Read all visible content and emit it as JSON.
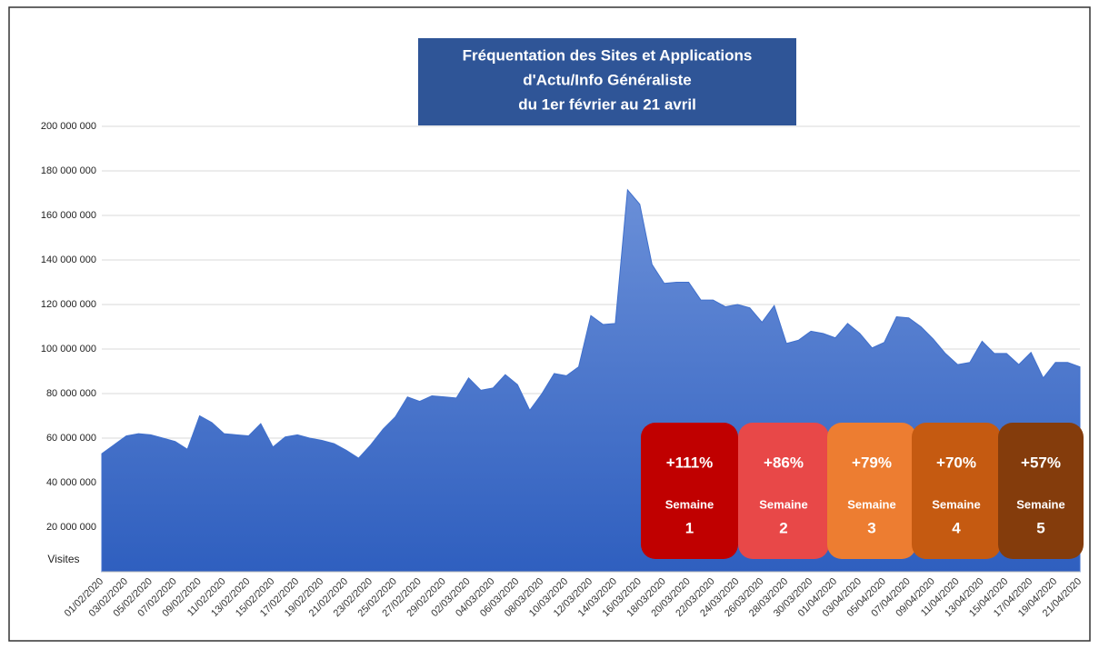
{
  "chart_data": {
    "type": "area",
    "title": [
      "Fréquentation des Sites et Applications",
      "d'Actu/Info Généraliste",
      "du 1er février au 21 avril"
    ],
    "y_label": "Visites",
    "color": "#3f6fcc",
    "categories": [
      "01/02/2020",
      null,
      "03/02/2020",
      null,
      "05/02/2020",
      null,
      "07/02/2020",
      null,
      "09/02/2020",
      null,
      "11/02/2020",
      null,
      "13/02/2020",
      null,
      "15/02/2020",
      null,
      "17/02/2020",
      null,
      "19/02/2020",
      null,
      "21/02/2020",
      null,
      "23/02/2020",
      null,
      "25/02/2020",
      null,
      "27/02/2020",
      null,
      "29/02/2020",
      null,
      "02/03/2020",
      null,
      "04/03/2020",
      null,
      "06/03/2020",
      null,
      "08/03/2020",
      null,
      "10/03/2020",
      null,
      "12/03/2020",
      null,
      "14/03/2020",
      null,
      "16/03/2020",
      null,
      "18/03/2020",
      null,
      "20/03/2020",
      null,
      "22/03/2020",
      null,
      "24/03/2020",
      null,
      "26/03/2020",
      null,
      "28/03/2020",
      null,
      "30/03/2020",
      null,
      "01/04/2020",
      null,
      "03/04/2020",
      null,
      "05/04/2020",
      null,
      "07/04/2020",
      null,
      "09/04/2020",
      null,
      "11/04/2020",
      null,
      "13/04/2020",
      null,
      "15/04/2020",
      null,
      "17/04/2020",
      null,
      "19/04/2020",
      null,
      "21/04/2020"
    ],
    "values": [
      53000000,
      57000000,
      61000000,
      62000000,
      61500000,
      60000000,
      58500000,
      55000000,
      70000000,
      67000000,
      62000000,
      61500000,
      61000000,
      66500000,
      56000000,
      60500000,
      61500000,
      60000000,
      59000000,
      57500000,
      54500000,
      51000000,
      57000000,
      64000000,
      69500000,
      78500000,
      76500000,
      79000000,
      78500000,
      78000000,
      87000000,
      81500000,
      82500000,
      88500000,
      84000000,
      72500000,
      80000000,
      89000000,
      88000000,
      92000000,
      115000000,
      111000000,
      111500000,
      171500000,
      165000000,
      138000000,
      129500000,
      130000000,
      130000000,
      122000000,
      122000000,
      119000000,
      120000000,
      118500000,
      112000000,
      119500000,
      102500000,
      104000000,
      108000000,
      107000000,
      105000000,
      111500000,
      107000000,
      100500000,
      103000000,
      114500000,
      114000000,
      110000000,
      104500000,
      98000000,
      93000000,
      94000000,
      103500000,
      98000000,
      98000000,
      93000000,
      98500000,
      87000000,
      94000000,
      94000000,
      92000000
    ],
    "ylim": [
      0,
      200000000
    ],
    "yticks": [
      {
        "value": 20000000,
        "label": "20 000 000"
      },
      {
        "value": 40000000,
        "label": "40 000 000"
      },
      {
        "value": 60000000,
        "label": "60 000 000"
      },
      {
        "value": 80000000,
        "label": "80 000 000"
      },
      {
        "value": 100000000,
        "label": "100 000 000"
      },
      {
        "value": 120000000,
        "label": "120 000 000"
      },
      {
        "value": 140000000,
        "label": "140 000 000"
      },
      {
        "value": 160000000,
        "label": "160 000 000"
      },
      {
        "value": 180000000,
        "label": "180 000 000"
      },
      {
        "value": 200000000,
        "label": "200 000 000"
      }
    ],
    "grid": true,
    "annotations": [
      {
        "change": "+111%",
        "label": "Semaine",
        "week": "1",
        "color": "#c00000"
      },
      {
        "change": "+86%",
        "label": "Semaine",
        "week": "2",
        "color": "#e84848"
      },
      {
        "change": "+79%",
        "label": "Semaine",
        "week": "3",
        "color": "#ed7d31"
      },
      {
        "change": "+70%",
        "label": "Semaine",
        "week": "4",
        "color": "#c55a11"
      },
      {
        "change": "+57%",
        "label": "Semaine",
        "week": "5",
        "color": "#843c0c"
      }
    ]
  }
}
